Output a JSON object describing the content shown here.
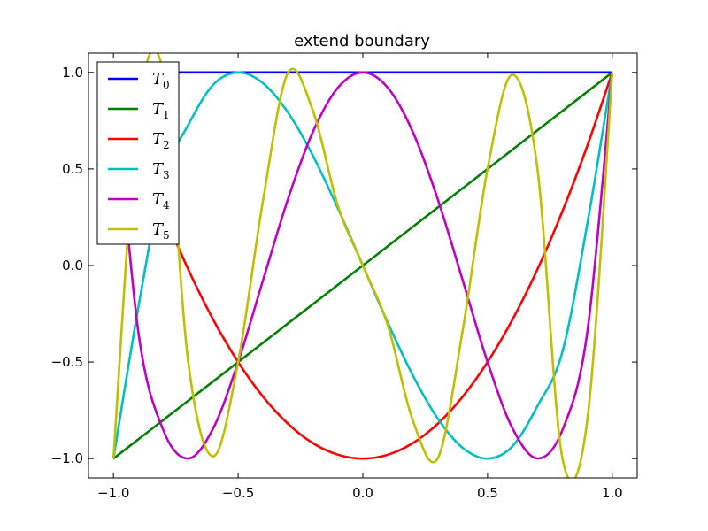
{
  "chart_data": {
    "type": "line",
    "title": "extend boundary",
    "xlabel": "",
    "ylabel": "",
    "xlim": [
      -1.1,
      1.1
    ],
    "ylim": [
      -1.1,
      1.1
    ],
    "grid": false,
    "legend_position": "top-left",
    "x_ticks": [
      -1.0,
      -0.5,
      0.0,
      0.5,
      1.0
    ],
    "x_tick_labels": [
      "−1.0",
      "−0.5",
      "0.0",
      "0.5",
      "1.0"
    ],
    "y_ticks": [
      -1.0,
      -0.5,
      0.0,
      0.5,
      1.0
    ],
    "y_tick_labels": [
      "−1.0",
      "−0.5",
      "0.0",
      "0.5",
      "1.0"
    ],
    "x": [
      -1.0,
      -0.9,
      -0.8,
      -0.7,
      -0.6,
      -0.5,
      -0.4,
      -0.3,
      -0.2,
      -0.1,
      0.0,
      0.1,
      0.2,
      0.3,
      0.4,
      0.5,
      0.6,
      0.7,
      0.8,
      0.9,
      1.0
    ],
    "series": [
      {
        "name": "T",
        "sub": "0",
        "color": "#0000ff",
        "values": [
          1,
          1,
          1,
          1,
          1,
          1,
          1,
          1,
          1,
          1,
          1,
          1,
          1,
          1,
          1,
          1,
          1,
          1,
          1,
          1,
          1
        ]
      },
      {
        "name": "T",
        "sub": "1",
        "color": "#008000",
        "values": [
          -1.0,
          -0.9,
          -0.8,
          -0.7,
          -0.6,
          -0.5,
          -0.4,
          -0.3,
          -0.2,
          -0.1,
          0.0,
          0.1,
          0.2,
          0.3,
          0.4,
          0.5,
          0.6,
          0.7,
          0.8,
          0.9,
          1.0
        ]
      },
      {
        "name": "T",
        "sub": "2",
        "color": "#ff0000",
        "values": [
          1.0,
          0.62,
          0.28,
          -0.02,
          -0.28,
          -0.5,
          -0.68,
          -0.82,
          -0.92,
          -0.98,
          -1.0,
          -0.98,
          -0.92,
          -0.82,
          -0.68,
          -0.5,
          -0.28,
          -0.02,
          0.28,
          0.62,
          1.0
        ]
      },
      {
        "name": "T",
        "sub": "3",
        "color": "#00bfbf",
        "values": [
          -1.0,
          -0.216,
          0.448,
          0.728,
          0.936,
          1.0,
          0.944,
          0.792,
          0.568,
          0.296,
          0.0,
          -0.296,
          -0.568,
          -0.792,
          -0.944,
          -1.0,
          -0.936,
          -0.728,
          -0.448,
          0.216,
          1.0
        ]
      },
      {
        "name": "T",
        "sub": "4",
        "color": "#bf00bf",
        "values": [
          1.0,
          -0.3448,
          -0.8528,
          -0.9992,
          -0.8432,
          -0.5,
          -0.0752,
          0.3448,
          0.6928,
          0.9208,
          1.0,
          0.9208,
          0.6928,
          0.3448,
          -0.0752,
          -0.5,
          -0.8432,
          -0.9992,
          -0.8528,
          -0.3448,
          1.0
        ]
      },
      {
        "name": "T",
        "sub": "5",
        "color": "#bfbf00",
        "values": [
          -1.0,
          0.8,
          0.997,
          -0.5,
          -0.988,
          -0.5,
          0.339,
          0.999,
          0.801,
          0.309,
          0.0,
          -0.309,
          -0.801,
          -0.999,
          -0.339,
          0.5,
          0.988,
          0.5,
          -0.997,
          -0.8,
          1.0
        ]
      }
    ]
  }
}
